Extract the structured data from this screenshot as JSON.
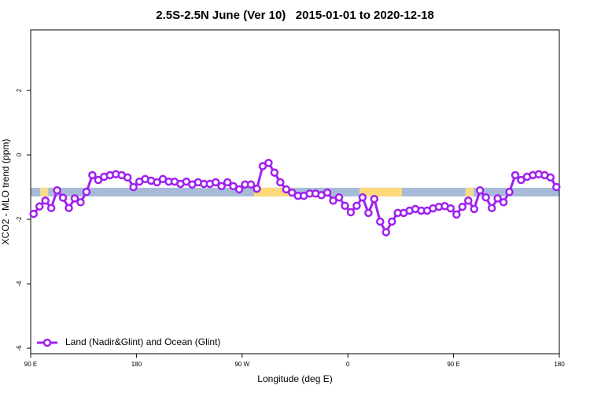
{
  "chart_data": {
    "type": "line",
    "title": "2.5S-2.5N June (Ver 10)   2015-01-01 to 2020-12-18",
    "x_label": "Longitude (deg E)",
    "y_label": "XCO2 - MLO trend (ppm)",
    "xlim": [
      90,
      540
    ],
    "ylim": [
      -6.17,
      3.88
    ],
    "xticks": [
      {
        "value": 90,
        "label": "90 E"
      },
      180,
      {
        "value": 270,
        "label": "90 W"
      },
      {
        "value": 360,
        "label": "0"
      },
      {
        "value": 450,
        "label": "90 E"
      },
      {
        "value": 540,
        "label": "180"
      }
    ],
    "yticks": [
      -6,
      -4,
      -2,
      0,
      2
    ],
    "band": {
      "y": [
        -1.02,
        -1.29
      ],
      "color": "#a7bbd9",
      "segments": [
        {
          "x": [
            98,
            105
          ],
          "color": "#f5dc8c"
        },
        {
          "x": [
            280,
            314
          ],
          "color": "#fdd97a"
        },
        {
          "x": [
            370,
            406
          ],
          "color": "#fdd97a"
        },
        {
          "x": [
            460,
            467
          ],
          "color": "#f5dc8c"
        }
      ]
    },
    "legend": "bottom-left",
    "x": [
      92.5,
      97.5,
      102.5,
      107.5,
      112.5,
      117.5,
      122.5,
      127.5,
      132.5,
      137.5,
      142.5,
      147.5,
      152.5,
      157.5,
      162.5,
      167.5,
      172.5,
      177.5,
      182.5,
      187.5,
      192.5,
      197.5,
      202.5,
      207.5,
      212.5,
      217.5,
      222.5,
      227.5,
      232.5,
      237.5,
      242.5,
      247.5,
      252.5,
      257.5,
      262.5,
      267.5,
      272.5,
      277.5,
      282.5,
      287.5,
      292.5,
      297.5,
      302.5,
      307.5,
      312.5,
      317.5,
      322.5,
      327.5,
      332.5,
      337.5,
      342.5,
      347.5,
      352.5,
      357.5,
      362.5,
      367.5,
      372.5,
      377.5,
      382.5,
      387.5,
      392.5,
      397.5,
      402.5,
      407.5,
      412.5,
      417.5,
      422.5,
      427.5,
      432.5,
      437.5,
      442.5,
      447.5,
      452.5,
      457.5,
      462.5,
      467.5,
      472.5,
      477.5,
      482.5,
      487.5,
      492.5,
      497.5,
      502.5,
      507.5,
      512.5,
      517.5,
      522.5,
      527.5,
      532.5,
      537.5
    ],
    "series": [
      {
        "name": "Land (Nadir&Glint) and Ocean (Glint)",
        "color": "#a020f0",
        "values": [
          -1.83,
          -1.6,
          -1.42,
          -1.65,
          -1.1,
          -1.33,
          -1.65,
          -1.35,
          -1.47,
          -1.15,
          -0.63,
          -0.78,
          -0.68,
          -0.63,
          -0.6,
          -0.63,
          -0.7,
          -1.0,
          -0.83,
          -0.75,
          -0.8,
          -0.85,
          -0.75,
          -0.83,
          -0.83,
          -0.9,
          -0.83,
          -0.92,
          -0.85,
          -0.9,
          -0.9,
          -0.85,
          -0.97,
          -0.85,
          -0.97,
          -1.07,
          -0.92,
          -0.92,
          -1.05,
          -0.35,
          -0.25,
          -0.55,
          -0.85,
          -1.07,
          -1.17,
          -1.27,
          -1.27,
          -1.2,
          -1.2,
          -1.25,
          -1.17,
          -1.42,
          -1.32,
          -1.58,
          -1.78,
          -1.58,
          -1.32,
          -1.8,
          -1.37,
          -2.07,
          -2.4,
          -2.07,
          -1.8,
          -1.8,
          -1.73,
          -1.68,
          -1.73,
          -1.73,
          -1.66,
          -1.61,
          -1.59,
          -1.66,
          -1.85,
          -1.61,
          -1.42,
          -1.68,
          -1.1,
          -1.32,
          -1.65,
          -1.35,
          -1.47,
          -1.15,
          -0.63,
          -0.78,
          -0.68,
          -0.63,
          -0.6,
          -0.63,
          -0.7,
          -1.0
        ]
      }
    ]
  }
}
